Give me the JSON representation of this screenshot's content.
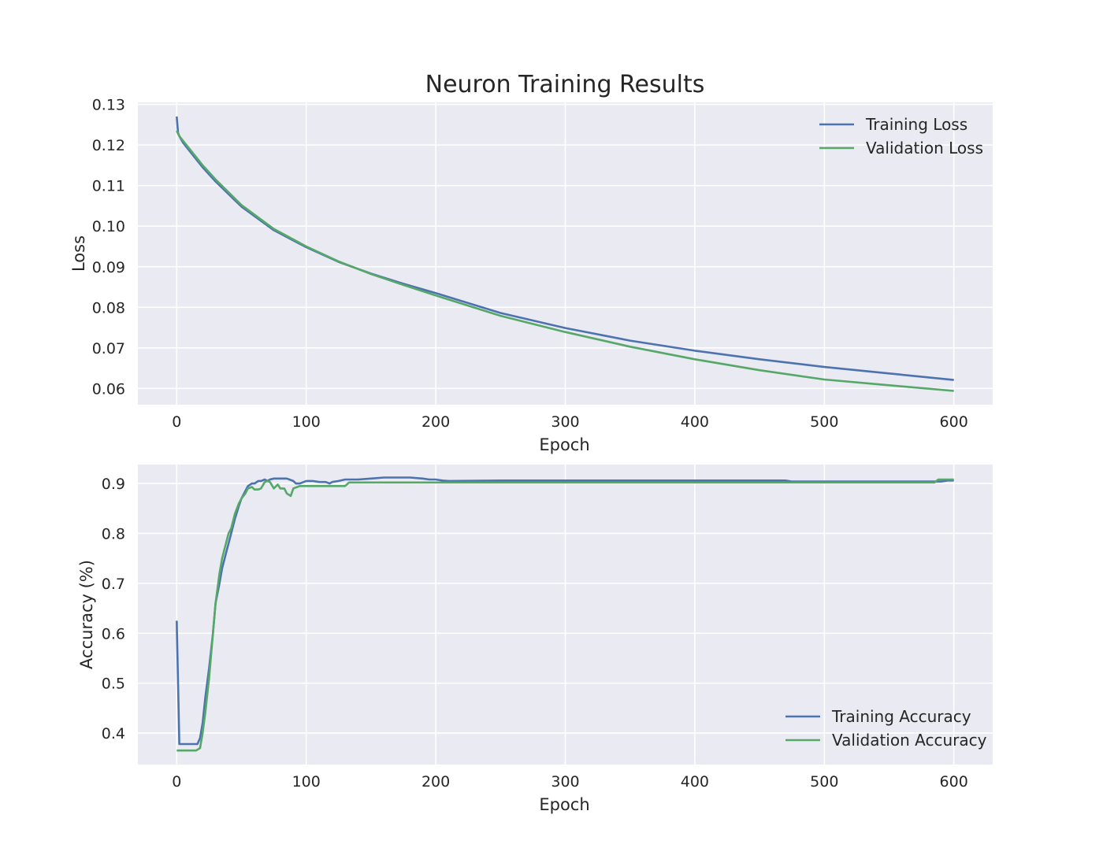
{
  "figure": {
    "title": "Neuron Training Results",
    "background": "#ffffff",
    "panel_background": "#eaeaf2",
    "grid_color": "#ffffff"
  },
  "chart_data": [
    {
      "type": "line",
      "xlabel": "Epoch",
      "ylabel": "Loss",
      "xlim": [
        -30,
        630
      ],
      "ylim": [
        0.056,
        0.1305
      ],
      "xticks": [
        0,
        100,
        200,
        300,
        400,
        500,
        600
      ],
      "xtick_labels": [
        "0",
        "100",
        "200",
        "300",
        "400",
        "500",
        "600"
      ],
      "yticks": [
        0.06,
        0.07,
        0.08,
        0.09,
        0.1,
        0.11,
        0.12,
        0.13
      ],
      "ytick_labels": [
        "0.06",
        "0.07",
        "0.08",
        "0.09",
        "0.10",
        "0.11",
        "0.12",
        "0.13"
      ],
      "grid": true,
      "legend": "top-right",
      "series": [
        {
          "name": "Training Loss",
          "color": "#4c72b0",
          "x": [
            0,
            1,
            2,
            5,
            10,
            20,
            30,
            50,
            75,
            100,
            125,
            150,
            175,
            200,
            250,
            300,
            350,
            400,
            450,
            500,
            550,
            600
          ],
          "y": [
            0.127,
            0.123,
            0.1222,
            0.1205,
            0.1185,
            0.1145,
            0.111,
            0.1048,
            0.099,
            0.0948,
            0.0912,
            0.0883,
            0.0858,
            0.0835,
            0.0786,
            0.0749,
            0.0718,
            0.0693,
            0.0672,
            0.0653,
            0.0637,
            0.0621
          ]
        },
        {
          "name": "Validation Loss",
          "color": "#55a868",
          "x": [
            0,
            1,
            2,
            5,
            10,
            20,
            30,
            50,
            75,
            100,
            125,
            150,
            175,
            200,
            250,
            300,
            350,
            400,
            450,
            500,
            550,
            600
          ],
          "y": [
            0.1235,
            0.1228,
            0.1222,
            0.121,
            0.119,
            0.115,
            0.1115,
            0.1052,
            0.0993,
            0.095,
            0.0913,
            0.0882,
            0.0855,
            0.0829,
            0.0779,
            0.0739,
            0.0703,
            0.0672,
            0.0645,
            0.0622,
            0.0608,
            0.0594
          ]
        }
      ]
    },
    {
      "type": "line",
      "xlabel": "Epoch",
      "ylabel": "Accuracy (%)",
      "xlim": [
        -30,
        630
      ],
      "ylim": [
        0.337,
        0.938
      ],
      "xticks": [
        0,
        100,
        200,
        300,
        400,
        500,
        600
      ],
      "xtick_labels": [
        "0",
        "100",
        "200",
        "300",
        "400",
        "500",
        "600"
      ],
      "yticks": [
        0.4,
        0.5,
        0.6,
        0.7,
        0.8,
        0.9
      ],
      "ytick_labels": [
        "0.4",
        "0.5",
        "0.6",
        "0.7",
        "0.8",
        "0.9"
      ],
      "grid": true,
      "legend": "bottom-right",
      "series": [
        {
          "name": "Training Accuracy",
          "color": "#4c72b0",
          "x": [
            0,
            1,
            2,
            5,
            10,
            15,
            16,
            18,
            20,
            22,
            25,
            28,
            30,
            33,
            35,
            38,
            40,
            42,
            45,
            48,
            50,
            53,
            55,
            58,
            60,
            63,
            65,
            68,
            70,
            72,
            75,
            80,
            85,
            90,
            92,
            95,
            100,
            105,
            110,
            115,
            118,
            120,
            125,
            130,
            140,
            150,
            160,
            170,
            180,
            190,
            195,
            200,
            205,
            210,
            250,
            300,
            400,
            470,
            475,
            500,
            590,
            595,
            600
          ],
          "y": [
            0.625,
            0.5,
            0.378,
            0.378,
            0.378,
            0.378,
            0.378,
            0.39,
            0.42,
            0.47,
            0.53,
            0.6,
            0.66,
            0.7,
            0.73,
            0.76,
            0.78,
            0.8,
            0.83,
            0.855,
            0.87,
            0.885,
            0.895,
            0.9,
            0.9,
            0.905,
            0.905,
            0.908,
            0.905,
            0.908,
            0.91,
            0.91,
            0.91,
            0.905,
            0.9,
            0.9,
            0.905,
            0.905,
            0.903,
            0.903,
            0.9,
            0.903,
            0.905,
            0.908,
            0.908,
            0.91,
            0.912,
            0.912,
            0.912,
            0.91,
            0.908,
            0.908,
            0.906,
            0.905,
            0.906,
            0.906,
            0.906,
            0.906,
            0.904,
            0.904,
            0.904,
            0.906,
            0.906
          ]
        },
        {
          "name": "Validation Accuracy",
          "color": "#55a868",
          "x": [
            0,
            5,
            10,
            15,
            18,
            20,
            22,
            25,
            28,
            30,
            33,
            35,
            38,
            40,
            42,
            45,
            48,
            50,
            53,
            55,
            58,
            60,
            63,
            65,
            68,
            70,
            72,
            75,
            78,
            80,
            83,
            85,
            88,
            90,
            95,
            100,
            110,
            120,
            130,
            133,
            140,
            150,
            200,
            300,
            400,
            500,
            585,
            588,
            600
          ],
          "y": [
            0.365,
            0.365,
            0.365,
            0.365,
            0.37,
            0.4,
            0.44,
            0.51,
            0.6,
            0.66,
            0.72,
            0.75,
            0.78,
            0.8,
            0.81,
            0.84,
            0.86,
            0.87,
            0.88,
            0.89,
            0.893,
            0.888,
            0.888,
            0.89,
            0.903,
            0.905,
            0.903,
            0.89,
            0.898,
            0.89,
            0.89,
            0.88,
            0.875,
            0.89,
            0.895,
            0.895,
            0.895,
            0.895,
            0.895,
            0.902,
            0.902,
            0.902,
            0.902,
            0.902,
            0.902,
            0.902,
            0.902,
            0.908,
            0.908
          ]
        }
      ]
    }
  ]
}
